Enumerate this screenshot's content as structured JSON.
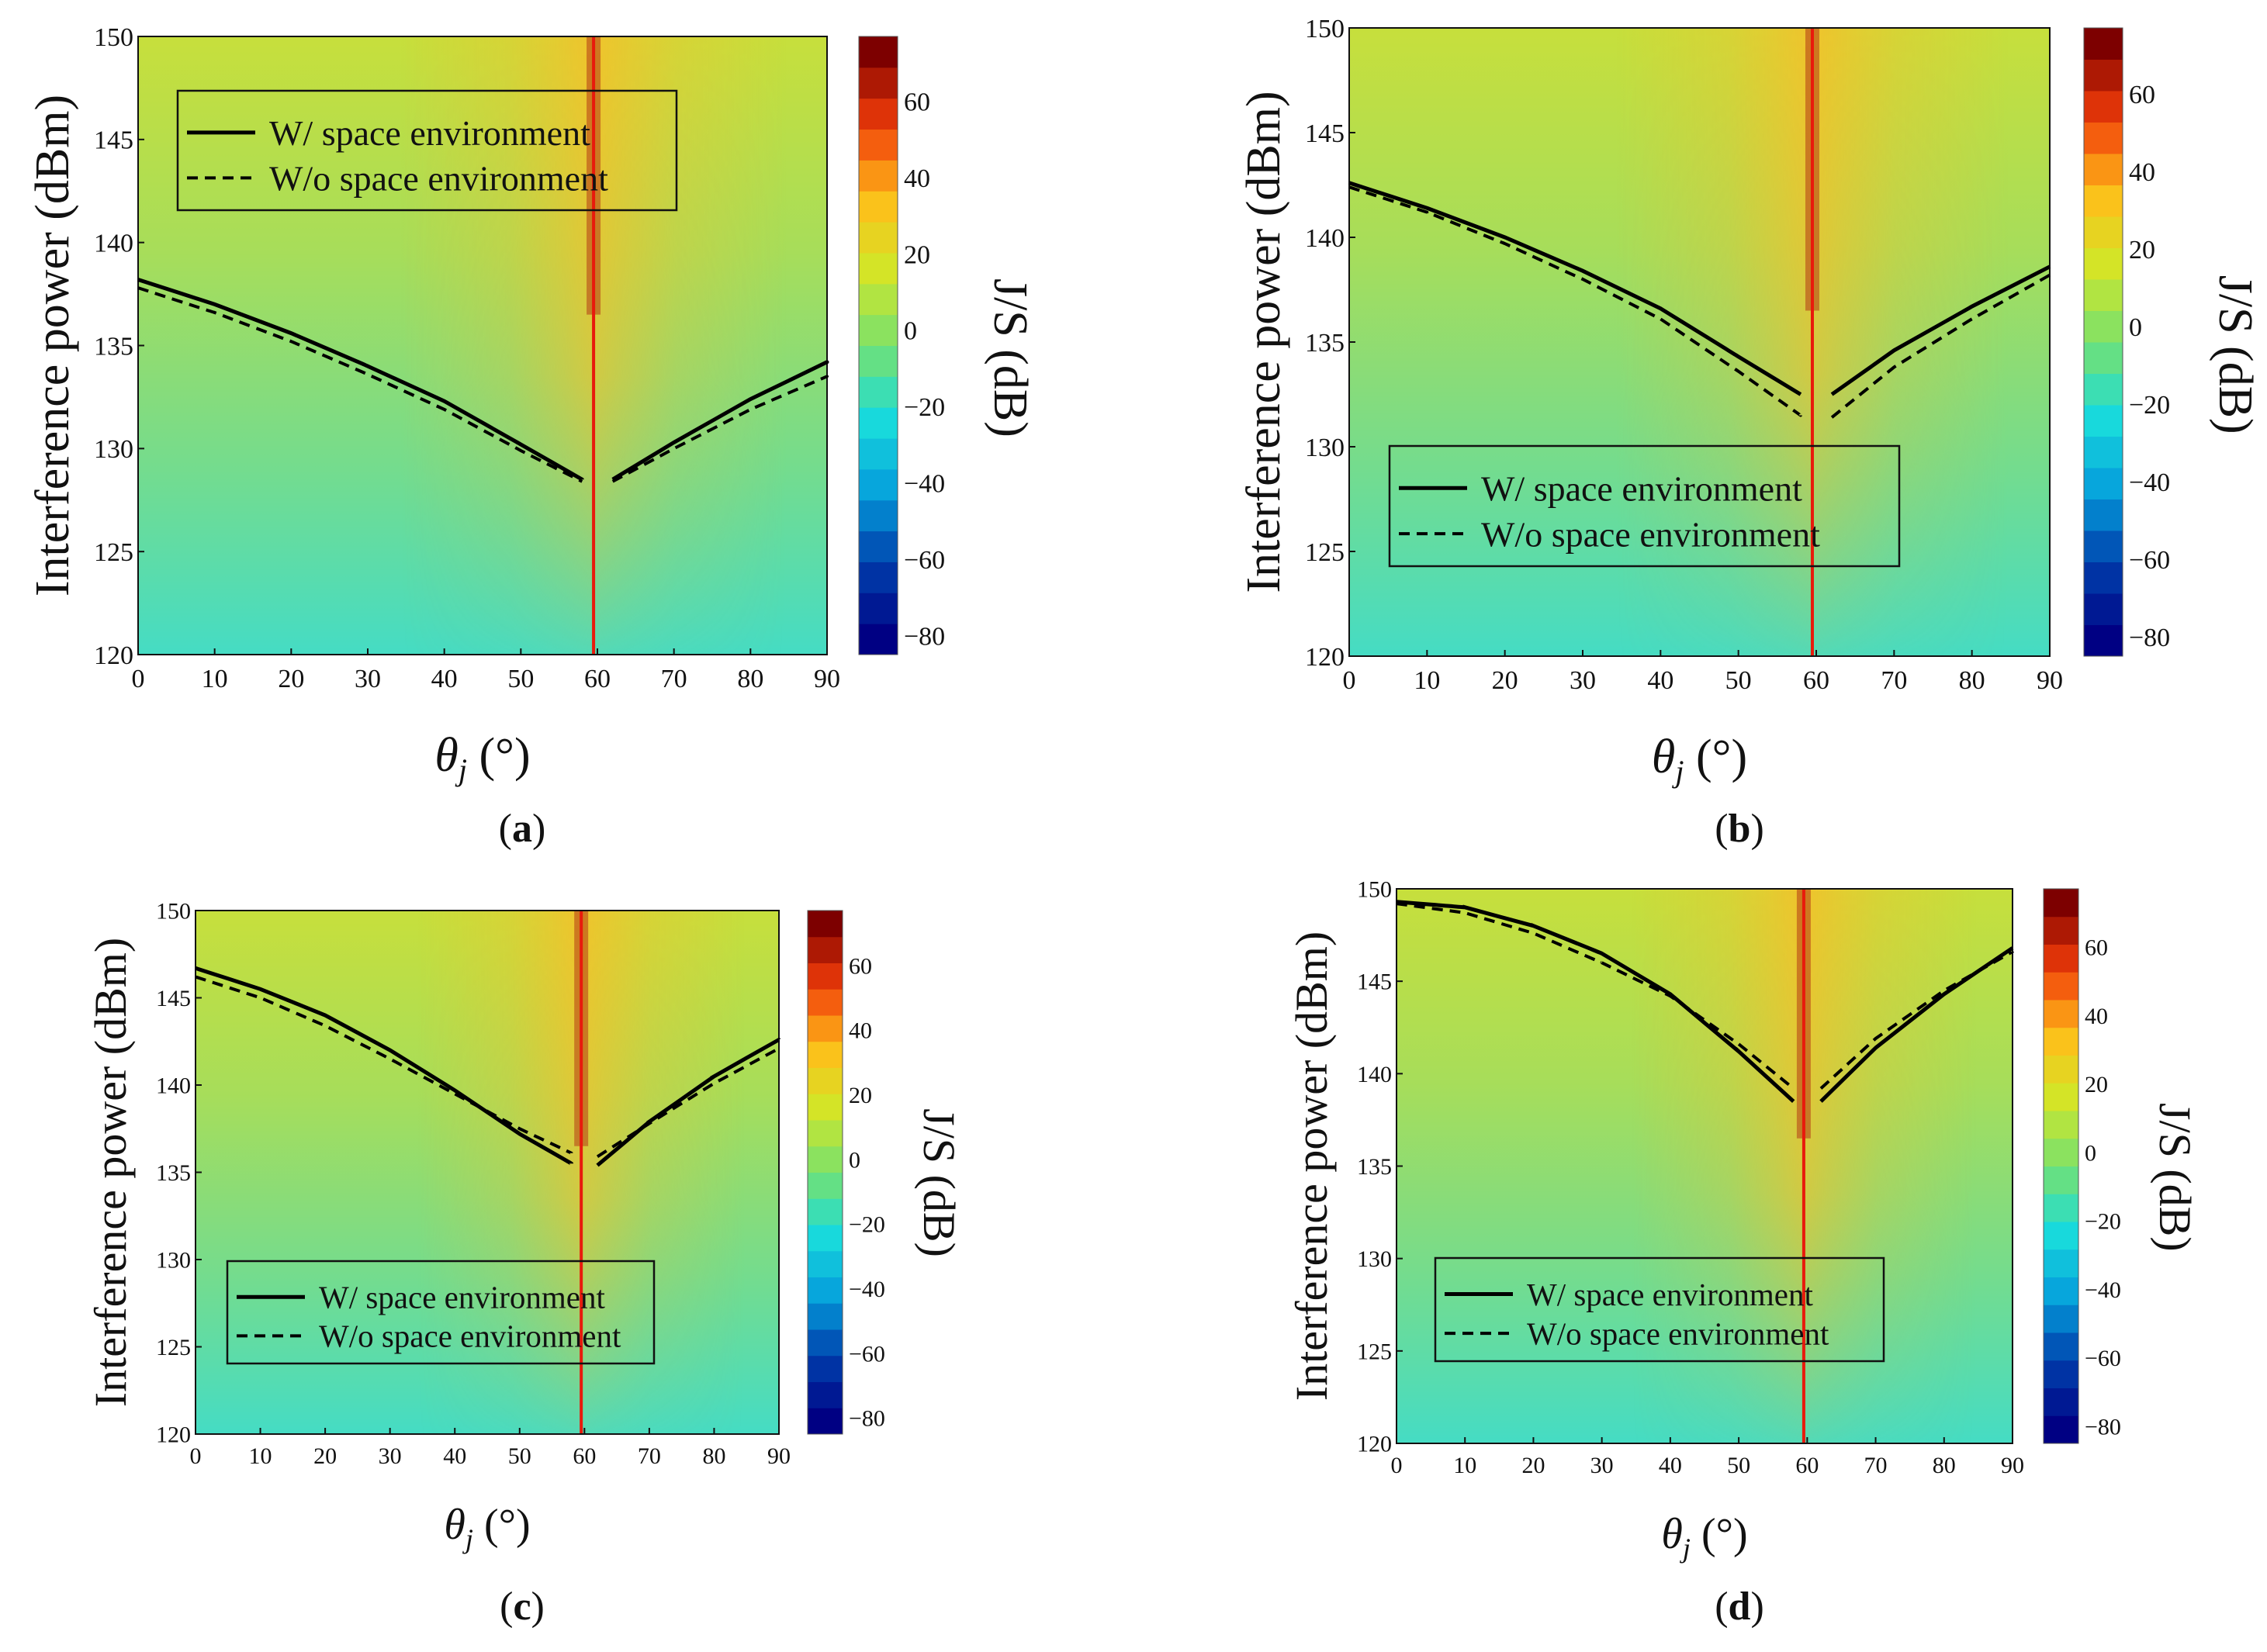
{
  "figure": {
    "panels_count": 4,
    "subfigure_labels": [
      "(a)",
      "(b)",
      "(c)",
      "(d)"
    ]
  },
  "colors": {
    "background": "#ffffff",
    "axis": "#111111",
    "curve": "#000000",
    "peak_line": "#e81a0c",
    "jet_low": "#17335a",
    "jet_mid": "#9fe21a",
    "jet_high": "#7d0000"
  },
  "icons": {
    "legend_solid": "solid-line-icon",
    "legend_dashed": "dashed-line-icon"
  },
  "chart_data": [
    {
      "type": "heatmap",
      "panel": "a",
      "caption": "(a)",
      "xlabel_symbol": "θ",
      "xlabel_sub": "j",
      "xlabel_unit": " (°)",
      "ylabel": "Interference power (dBm)",
      "colorbar_label": "J/S (dB)",
      "xlim": [
        0,
        90
      ],
      "ylim": [
        120,
        150
      ],
      "xticks": [
        0,
        10,
        20,
        30,
        40,
        50,
        60,
        70,
        80,
        90
      ],
      "yticks": [
        120,
        125,
        130,
        135,
        140,
        145,
        150
      ],
      "colorbar_range": [
        -85,
        77
      ],
      "colorbar_ticks": [
        60,
        40,
        20,
        0,
        -20,
        -40,
        -60,
        -80
      ],
      "colorbar_tick_labels": [
        "60",
        "40",
        "20",
        "0",
        "−20",
        "−40",
        "−60",
        "−80"
      ],
      "legend_position": "top-left",
      "legend": [
        "W/ space environment",
        "W/o space environment"
      ],
      "series": [
        {
          "name": "W/ space environment",
          "style": "solid",
          "x": [
            0,
            10,
            20,
            30,
            40,
            50,
            58,
            62,
            70,
            80,
            90
          ],
          "y": [
            138.2,
            137,
            135.6,
            134,
            132.3,
            130.2,
            128.5,
            128.5,
            130.3,
            132.4,
            134.2
          ]
        },
        {
          "name": "W/o space environment",
          "style": "dashed",
          "x": [
            0,
            10,
            20,
            30,
            40,
            50,
            58,
            62,
            70,
            80,
            90
          ],
          "y": [
            137.8,
            136.6,
            135.2,
            133.6,
            131.9,
            129.9,
            128.4,
            128.4,
            130,
            131.9,
            133.5
          ]
        }
      ]
    },
    {
      "type": "heatmap",
      "panel": "b",
      "caption": "(b)",
      "xlabel_symbol": "θ",
      "xlabel_sub": "j",
      "xlabel_unit": " (°)",
      "ylabel": "Interference power (dBm)",
      "colorbar_label": "J/S (dB)",
      "xlim": [
        0,
        90
      ],
      "ylim": [
        120,
        150
      ],
      "xticks": [
        0,
        10,
        20,
        30,
        40,
        50,
        60,
        70,
        80,
        90
      ],
      "yticks": [
        120,
        125,
        130,
        135,
        140,
        145,
        150
      ],
      "colorbar_range": [
        -85,
        77
      ],
      "colorbar_ticks": [
        60,
        40,
        20,
        0,
        -20,
        -40,
        -60,
        -80
      ],
      "colorbar_tick_labels": [
        "60",
        "40",
        "20",
        "0",
        "−20",
        "−40",
        "−60",
        "−80"
      ],
      "legend_position": "bottom-left",
      "legend": [
        "W/ space environment",
        "W/o space environment"
      ],
      "series": [
        {
          "name": "W/ space environment",
          "style": "solid",
          "x": [
            0,
            10,
            20,
            30,
            40,
            50,
            58,
            62,
            70,
            80,
            90
          ],
          "y": [
            142.6,
            141.4,
            140,
            138.4,
            136.6,
            134.3,
            132.5,
            132.5,
            134.6,
            136.7,
            138.6
          ]
        },
        {
          "name": "W/o space environment",
          "style": "dashed",
          "x": [
            0,
            10,
            20,
            30,
            40,
            50,
            58,
            62,
            70,
            80,
            90
          ],
          "y": [
            142.4,
            141.2,
            139.7,
            138,
            136.1,
            133.6,
            131.5,
            131.4,
            133.8,
            136.1,
            138.2
          ]
        }
      ]
    },
    {
      "type": "heatmap",
      "panel": "c",
      "caption": "(c)",
      "xlabel_symbol": "θ",
      "xlabel_sub": "j",
      "xlabel_unit": " (°)",
      "ylabel": "Interference power (dBm)",
      "colorbar_label": "J/S (dB)",
      "xlim": [
        0,
        90
      ],
      "ylim": [
        120,
        150
      ],
      "xticks": [
        0,
        10,
        20,
        30,
        40,
        50,
        60,
        70,
        80,
        90
      ],
      "yticks": [
        120,
        125,
        130,
        135,
        140,
        145,
        150
      ],
      "colorbar_range": [
        -85,
        77
      ],
      "colorbar_ticks": [
        60,
        40,
        20,
        0,
        -20,
        -40,
        -60,
        -80
      ],
      "colorbar_tick_labels": [
        "60",
        "40",
        "20",
        "0",
        "−20",
        "−40",
        "−60",
        "−80"
      ],
      "legend_position": "bottom-left",
      "legend": [
        "W/ space environment",
        "W/o space environment"
      ],
      "series": [
        {
          "name": "W/ space environment",
          "style": "solid",
          "x": [
            0,
            10,
            20,
            30,
            40,
            50,
            58,
            62,
            70,
            80,
            90
          ],
          "y": [
            146.7,
            145.5,
            144,
            142,
            139.7,
            137.2,
            135.5,
            135.4,
            137.9,
            140.5,
            142.6
          ]
        },
        {
          "name": "W/o space environment",
          "style": "dashed",
          "x": [
            0,
            10,
            20,
            30,
            40,
            50,
            58,
            62,
            70,
            80,
            90
          ],
          "y": [
            146.2,
            145,
            143.4,
            141.5,
            139.5,
            137.5,
            136.1,
            135.9,
            137.8,
            140.1,
            142.1
          ]
        }
      ]
    },
    {
      "type": "heatmap",
      "panel": "d",
      "caption": "(d)",
      "xlabel_symbol": "θ",
      "xlabel_sub": "j",
      "xlabel_unit": " (°)",
      "ylabel": "Interference power (dBm)",
      "colorbar_label": "J/S (dB)",
      "xlim": [
        0,
        90
      ],
      "ylim": [
        120,
        150
      ],
      "xticks": [
        0,
        10,
        20,
        30,
        40,
        50,
        60,
        70,
        80,
        90
      ],
      "yticks": [
        120,
        125,
        130,
        135,
        140,
        145,
        150
      ],
      "colorbar_range": [
        -85,
        77
      ],
      "colorbar_ticks": [
        60,
        40,
        20,
        0,
        -20,
        -40,
        -60,
        -80
      ],
      "colorbar_tick_labels": [
        "60",
        "40",
        "20",
        "0",
        "−20",
        "−40",
        "−60",
        "−80"
      ],
      "legend_position": "bottom-left",
      "legend": [
        "W/ space environment",
        "W/o space environment"
      ],
      "series": [
        {
          "name": "W/ space environment",
          "style": "solid",
          "x": [
            0,
            10,
            20,
            30,
            40,
            50,
            58,
            62,
            70,
            80,
            90
          ],
          "y": [
            149.3,
            149,
            148,
            146.5,
            144.3,
            141.2,
            138.5,
            138.5,
            141.4,
            144.3,
            146.8
          ]
        },
        {
          "name": "W/o space environment",
          "style": "dashed",
          "x": [
            0,
            10,
            20,
            30,
            40,
            50,
            58,
            62,
            70,
            80,
            90
          ],
          "y": [
            149.2,
            148.7,
            147.6,
            146,
            144.2,
            141.6,
            139.2,
            139.2,
            141.9,
            144.5,
            146.6
          ]
        }
      ]
    }
  ]
}
